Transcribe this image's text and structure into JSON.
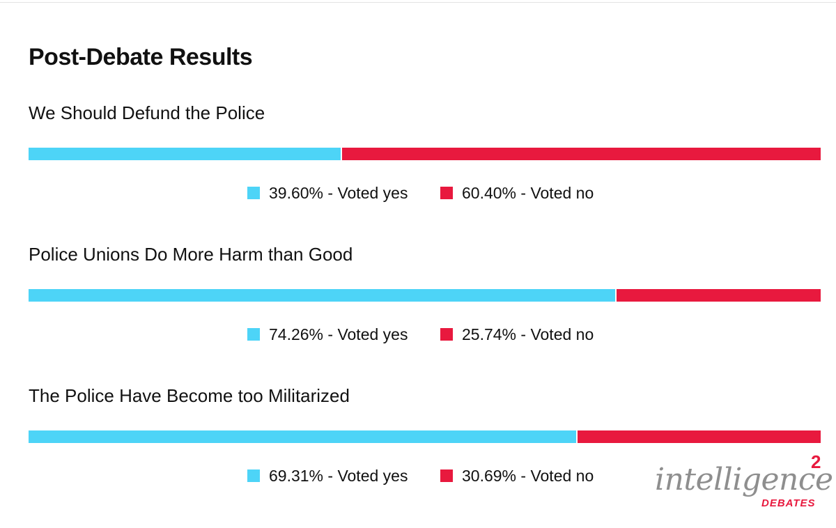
{
  "page": {
    "title": "Post-Debate Results"
  },
  "colors": {
    "yes": "#4dd4f7",
    "no": "#e8193e"
  },
  "chart_data": {
    "type": "bar",
    "orientation": "horizontal-stacked-100",
    "series": [
      {
        "name": "Voted yes",
        "color": "#4dd4f7"
      },
      {
        "name": "Voted no",
        "color": "#e8193e"
      }
    ],
    "questions": [
      {
        "title": "We Should Defund the Police",
        "yes": 39.6,
        "no": 60.4,
        "yes_label": "39.60% - Voted yes",
        "no_label": "60.40% - Voted no"
      },
      {
        "title": "Police Unions Do More Harm than Good",
        "yes": 74.26,
        "no": 25.74,
        "yes_label": "74.26% - Voted yes",
        "no_label": "25.74% - Voted no"
      },
      {
        "title": "The Police Have Become too Militarized",
        "yes": 69.31,
        "no": 30.69,
        "yes_label": "69.31% - Voted yes",
        "no_label": "30.69% - Voted no"
      }
    ]
  },
  "logo": {
    "word": "intelligence",
    "superscript": "2",
    "subtitle": "DEBATES"
  }
}
